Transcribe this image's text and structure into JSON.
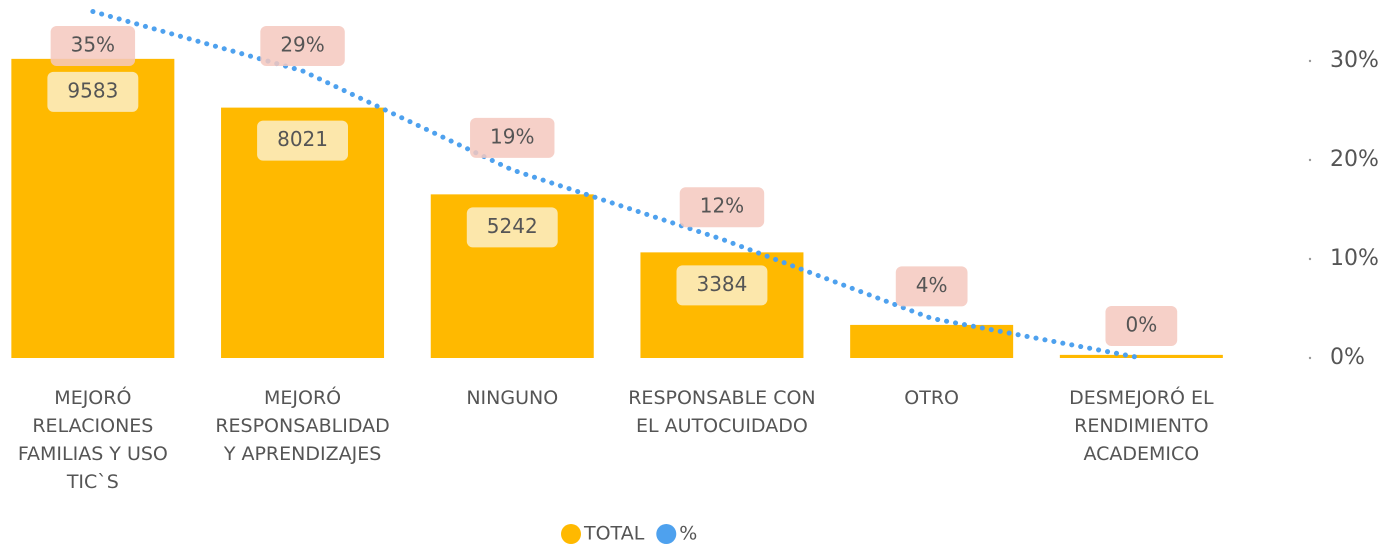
{
  "chart_data": {
    "type": "bar-line",
    "categories": [
      "MEJORÓ RELACIONES FAMILIAS Y USO TIC`S",
      "MEJORÓ RESPONSABLIDAD Y APRENDIZAJES",
      "NINGUNO",
      "RESPONSABLE CON EL AUTOCUIDADO",
      "OTRO",
      "DESMEJORÓ EL RENDIMIENTO ACADEMICO"
    ],
    "series": [
      {
        "name": "TOTAL",
        "color": "#FFB900",
        "type": "bar",
        "values": [
          9583,
          8021,
          5242,
          3384,
          1060,
          100
        ],
        "value_labels": [
          "9583",
          "8021",
          "5242",
          "3384",
          null,
          null
        ]
      },
      {
        "name": "%",
        "color": "#4EA1EE",
        "type": "line",
        "axis": "y2",
        "values": [
          35,
          29,
          19,
          12,
          4,
          0
        ],
        "value_labels": [
          "35%",
          "29%",
          "19%",
          "12%",
          "4%",
          "0%"
        ]
      }
    ],
    "ylim": [
      0,
      11100
    ],
    "y2lim": [
      0,
      35
    ],
    "y2ticks": [
      {
        "value": 0,
        "label": "0%"
      },
      {
        "value": 10,
        "label": "10%"
      },
      {
        "value": 20,
        "label": "20%"
      },
      {
        "value": 30,
        "label": "30%"
      }
    ],
    "legend": "bottom"
  }
}
